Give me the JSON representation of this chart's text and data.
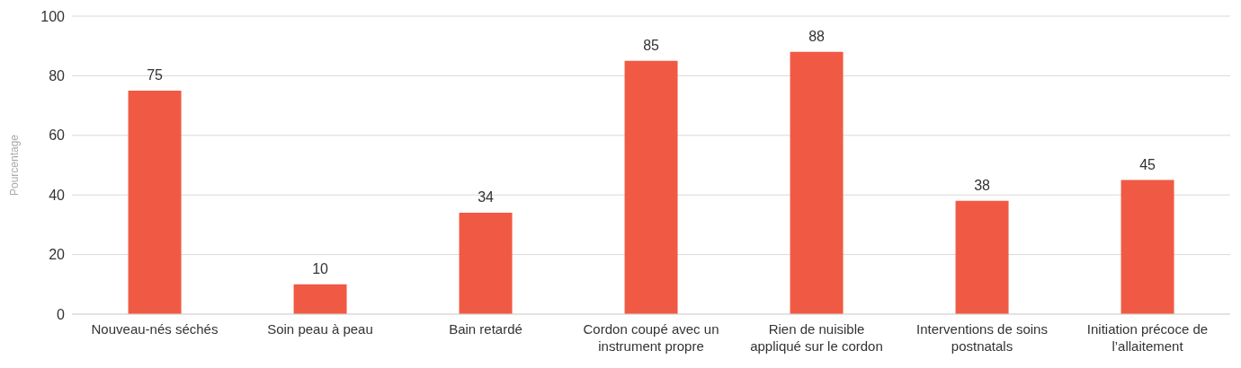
{
  "chart_data": {
    "type": "bar",
    "ylabel": "Pourcentage",
    "categories": [
      "Nouveau-nés séchés",
      "Soin peau à peau",
      "Bain retardé",
      "Cordon coupé avec un instrument propre",
      "Rien de nuisible appliqué sur le cordon",
      "Interventions de soins postnatals",
      "Initiation précoce de l’allaitement"
    ],
    "values": [
      75,
      10,
      34,
      85,
      88,
      38,
      45
    ],
    "color": "#f05a44",
    "ylim": [
      0,
      100
    ],
    "yticks": [
      0,
      20,
      40,
      60,
      80,
      100
    ],
    "grid": "y",
    "data_labels": true
  }
}
